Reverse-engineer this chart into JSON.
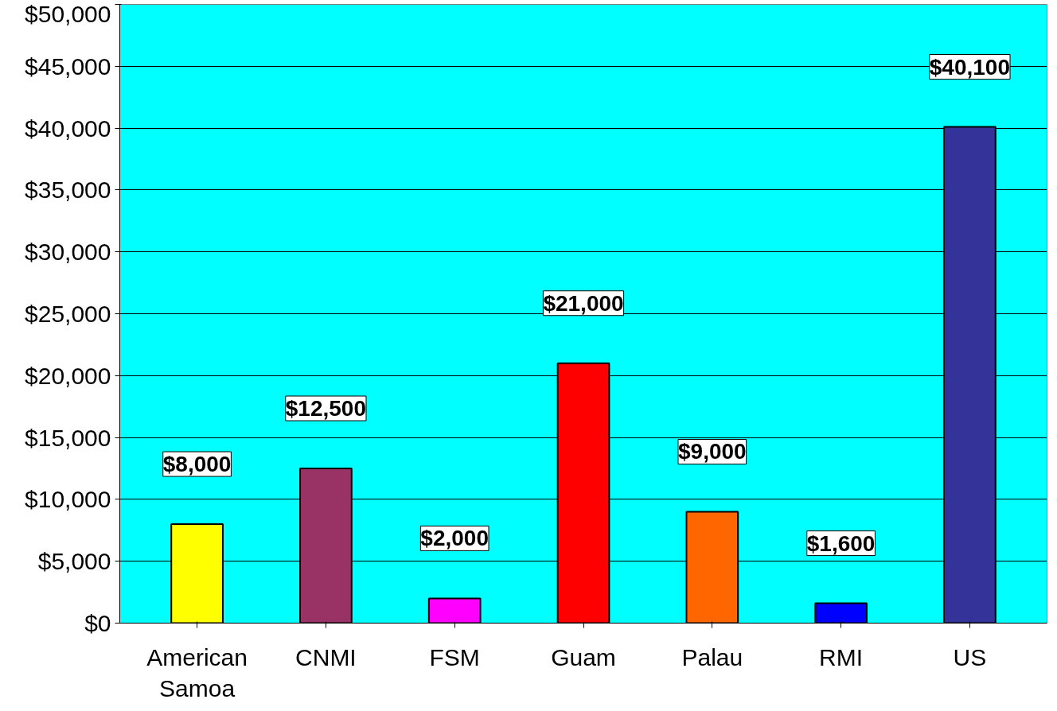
{
  "chart_data": {
    "type": "bar",
    "categories": [
      "American Samoa",
      "CNMI",
      "FSM",
      "Guam",
      "Palau",
      "RMI",
      "US"
    ],
    "values": [
      8000,
      12500,
      2000,
      21000,
      9000,
      1600,
      40100
    ],
    "colors": [
      "#ffff00",
      "#993366",
      "#ff00ff",
      "#ff0000",
      "#ff6600",
      "#0000ff",
      "#333399"
    ],
    "value_labels": [
      "$8,000",
      "$12,500",
      "$2,000",
      "$21,000",
      "$9,000",
      "$1,600",
      "$40,100"
    ],
    "ylim": [
      0,
      50000
    ],
    "yticks": [
      {
        "value": 0,
        "label": "$0"
      },
      {
        "value": 5000,
        "label": "$5,000"
      },
      {
        "value": 10000,
        "label": "$10,000"
      },
      {
        "value": 15000,
        "label": "$15,000"
      },
      {
        "value": 20000,
        "label": "$20,000"
      },
      {
        "value": 25000,
        "label": "$25,000"
      },
      {
        "value": 30000,
        "label": "$30,000"
      },
      {
        "value": 35000,
        "label": "$35,000"
      },
      {
        "value": 40000,
        "label": "$40,000"
      },
      {
        "value": 45000,
        "label": "$45,000"
      },
      {
        "value": 50000,
        "label": "$50,000"
      }
    ],
    "grid": "y"
  }
}
